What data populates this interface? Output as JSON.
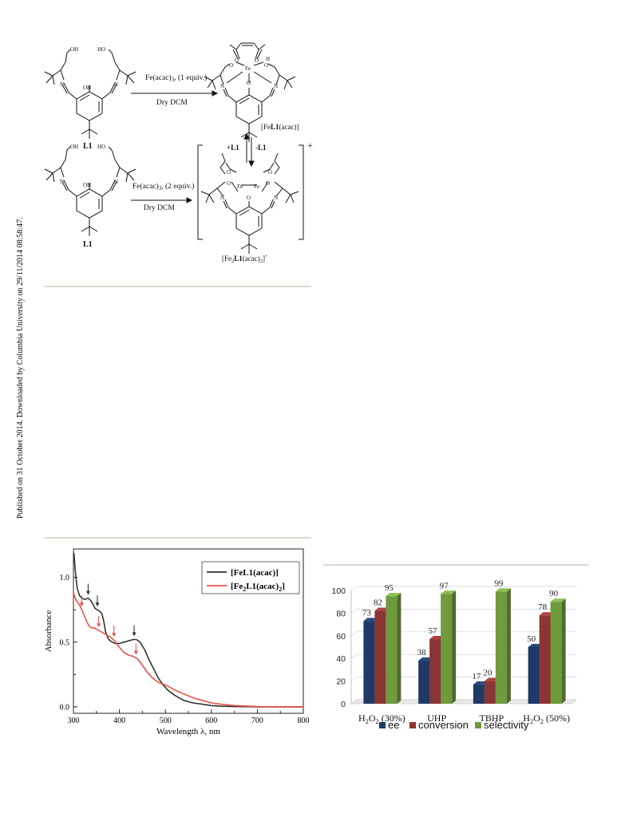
{
  "sidebar_text": "Published on 31 October 2014. Downloaded by Columbia University on 29/11/2014 08:58:47.",
  "scheme": {
    "top_reagent": "Fe(acac)",
    "top_reagent_sub": "3",
    "top_reagent_tail": ", (1 equiv.)",
    "top_solvent": "Dry DCM",
    "bottom_reagent": "Fe(acac)",
    "bottom_reagent_sub": "3",
    "bottom_reagent_tail": ", (2 equiv.)",
    "bottom_solvent": "Dry DCM",
    "ligand_label_top": "L1",
    "ligand_label_bottom": "L1",
    "product_top": "[Fe",
    "product_top_bold": "L1",
    "product_top_tail": "(acac)]",
    "product_bottom": "[Fe",
    "product_bottom_sub": "2",
    "product_bottom_bold": "L1",
    "product_bottom_tail": "(acac)",
    "product_bottom_sub2": "2",
    "product_bottom_end": "]",
    "product_bottom_sup": "+",
    "bracket_charge": "+",
    "equil_left": "+L1",
    "equil_right": "-L1",
    "atom_oh": "OH",
    "atom_ho": "HO",
    "atom_n": "N",
    "atom_o": "O",
    "atom_fe": "Fe",
    "atom_h": "H"
  },
  "chart_data": [
    {
      "type": "line",
      "xlabel": "Wavelength λ, nm",
      "ylabel": "Absorbance",
      "xlim": [
        300,
        800
      ],
      "ylim": [
        -0.05,
        1.22
      ],
      "x_ticks": [
        "300",
        "400",
        "500",
        "600",
        "700",
        "800"
      ],
      "y_ticks": [
        "0.0",
        "0.5",
        "1.0"
      ],
      "legend_placement": "top-right",
      "series": [
        {
          "name": "[FeL1(acac)]",
          "color": "#333333",
          "x": [
            301,
            304,
            308,
            313,
            318,
            325,
            332,
            338,
            343,
            347,
            352,
            357,
            362,
            366,
            370,
            375,
            380,
            385,
            390,
            400,
            410,
            420,
            430,
            437,
            445,
            455,
            465,
            475,
            485,
            495,
            505,
            520,
            540,
            560,
            580,
            600,
            620,
            650,
            680,
            700,
            750,
            800
          ],
          "y": [
            1.19,
            1.05,
            0.92,
            0.86,
            0.84,
            0.83,
            0.84,
            0.82,
            0.79,
            0.76,
            0.75,
            0.74,
            0.72,
            0.66,
            0.58,
            0.53,
            0.51,
            0.5,
            0.49,
            0.49,
            0.5,
            0.51,
            0.52,
            0.52,
            0.5,
            0.44,
            0.36,
            0.29,
            0.22,
            0.17,
            0.13,
            0.09,
            0.05,
            0.03,
            0.02,
            0.01,
            0.005,
            0.002,
            0.001,
            0.0,
            0.0,
            0.0
          ]
        },
        {
          "name": "[Fe2L1(acac)2]",
          "color": "#e8524a",
          "x": [
            300,
            304,
            308,
            313,
            318,
            323,
            330,
            335,
            340,
            345,
            350,
            355,
            360,
            365,
            370,
            380,
            390,
            400,
            410,
            420,
            430,
            440,
            450,
            460,
            470,
            480,
            490,
            500,
            510,
            520,
            540,
            560,
            580,
            600,
            620,
            650,
            680,
            700,
            750,
            800
          ],
          "y": [
            0.88,
            0.84,
            0.81,
            0.79,
            0.75,
            0.71,
            0.65,
            0.62,
            0.61,
            0.61,
            0.6,
            0.59,
            0.58,
            0.57,
            0.56,
            0.54,
            0.51,
            0.46,
            0.42,
            0.4,
            0.39,
            0.37,
            0.32,
            0.27,
            0.23,
            0.2,
            0.18,
            0.17,
            0.15,
            0.13,
            0.1,
            0.07,
            0.05,
            0.03,
            0.02,
            0.01,
            0.005,
            0.002,
            0.0,
            0.0
          ]
        }
      ],
      "arrows_black_x": [
        332,
        352,
        432
      ],
      "arrows_red_x": [
        318,
        355,
        388,
        436
      ]
    },
    {
      "type": "bar",
      "categories": [
        "H2O2 (30%)",
        "UHP",
        "TBHP",
        "H2O2 (50%)"
      ],
      "ylim": [
        0,
        100
      ],
      "y_ticks": [
        "0",
        "20",
        "40",
        "60",
        "80",
        "100"
      ],
      "legend_placement": "bottom",
      "series": [
        {
          "name": "ee",
          "color": "#1f3a66",
          "values": [
            73,
            38,
            17,
            50
          ]
        },
        {
          "name": "conversion",
          "color": "#8c3535",
          "values": [
            82,
            57,
            20,
            78
          ]
        },
        {
          "name": "selectivity",
          "color": "#6f9a3d",
          "values": [
            95,
            97,
            99,
            90
          ]
        }
      ]
    }
  ]
}
